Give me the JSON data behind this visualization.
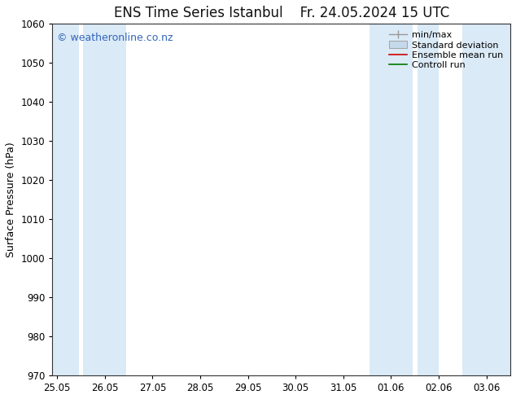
{
  "title_left": "ENS Time Series Istanbul",
  "title_right": "Fr. 24.05.2024 15 UTC",
  "ylabel": "Surface Pressure (hPa)",
  "ylim": [
    970,
    1060
  ],
  "yticks": [
    970,
    980,
    990,
    1000,
    1010,
    1020,
    1030,
    1040,
    1050,
    1060
  ],
  "xtick_labels": [
    "25.05",
    "26.05",
    "27.05",
    "28.05",
    "29.05",
    "30.05",
    "31.05",
    "01.06",
    "02.06",
    "03.06"
  ],
  "watermark": "© weatheronline.co.nz",
  "watermark_color": "#3366bb",
  "bg_color": "#ffffff",
  "band_color": "#daeaf7",
  "title_fontsize": 12,
  "axis_label_fontsize": 9,
  "tick_fontsize": 8.5,
  "watermark_fontsize": 9,
  "legend_fontsize": 8
}
